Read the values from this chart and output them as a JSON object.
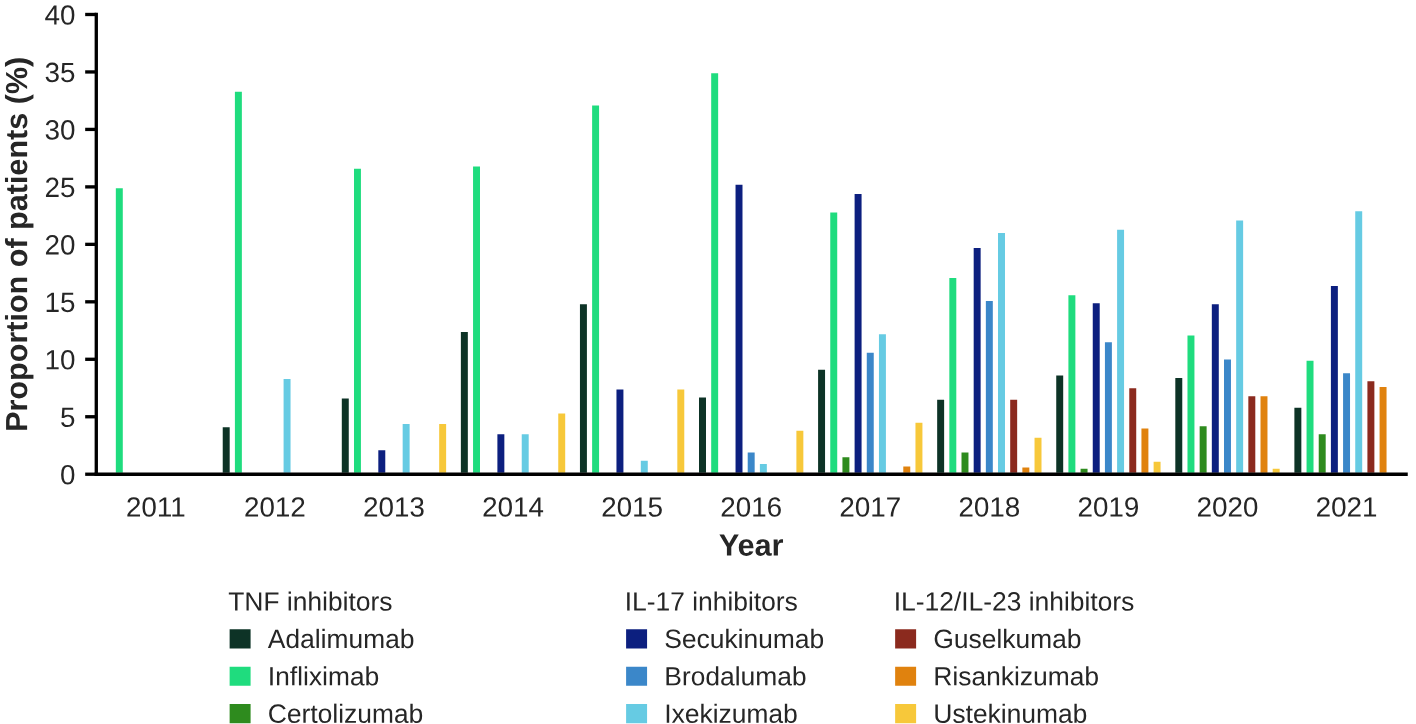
{
  "chart_data": {
    "type": "bar",
    "xlabel": "Year",
    "ylabel": "Proportion of patients (%)",
    "categories": [
      "2011",
      "2012",
      "2013",
      "2014",
      "2015",
      "2016",
      "2017",
      "2018",
      "2019",
      "2020",
      "2021"
    ],
    "ylim": [
      0,
      40
    ],
    "yticks": [
      0,
      5,
      10,
      15,
      20,
      25,
      30,
      35,
      40
    ],
    "grid": false,
    "legend": "bottom",
    "annotations": [
      "TNF inhibitors",
      "IL-17 inhibitors",
      "IL-12/IL-23 inhibitors"
    ],
    "series": [
      {
        "name": "Adalimumab",
        "color": "#0d3326",
        "values": [
          null,
          4.2,
          6.7,
          12.5,
          14.9,
          6.8,
          9.2,
          6.6,
          8.7,
          8.5,
          5.9
        ]
      },
      {
        "name": "Infliximab",
        "color": "#1fdc7e",
        "values": [
          25.0,
          33.4,
          26.7,
          26.9,
          32.2,
          35.0,
          22.9,
          17.2,
          15.7,
          12.2,
          10.0
        ]
      },
      {
        "name": "Certolizumab",
        "color": "#2e8b1e",
        "values": [
          null,
          null,
          null,
          null,
          null,
          null,
          1.6,
          2.0,
          0.6,
          4.3,
          3.6
        ]
      },
      {
        "name": "Secukinumab",
        "color": "#0c1f7f",
        "values": [
          null,
          null,
          2.2,
          3.6,
          7.5,
          25.3,
          24.5,
          19.8,
          15.0,
          14.9,
          16.5
        ]
      },
      {
        "name": "Brodalumab",
        "color": "#3b87c9",
        "values": [
          null,
          null,
          null,
          null,
          null,
          2.0,
          10.7,
          15.2,
          11.6,
          10.1,
          8.9
        ]
      },
      {
        "name": "Ixekizumab",
        "color": "#66cbe3",
        "values": [
          null,
          8.4,
          4.5,
          3.6,
          1.3,
          1.0,
          12.3,
          21.1,
          21.4,
          22.2,
          23.0
        ]
      },
      {
        "name": "Guselkumab",
        "color": "#8b2a1e",
        "values": [
          null,
          null,
          null,
          null,
          null,
          null,
          null,
          6.6,
          7.6,
          6.9,
          8.2
        ]
      },
      {
        "name": "Risankizumab",
        "color": "#e0820e",
        "values": [
          null,
          null,
          null,
          null,
          null,
          null,
          0.8,
          0.7,
          4.1,
          6.9,
          7.7
        ]
      },
      {
        "name": "Ustekinumab",
        "color": "#f7c83a",
        "values": [
          null,
          null,
          4.5,
          5.4,
          7.5,
          3.9,
          4.6,
          3.3,
          1.2,
          0.6,
          null
        ]
      }
    ]
  }
}
